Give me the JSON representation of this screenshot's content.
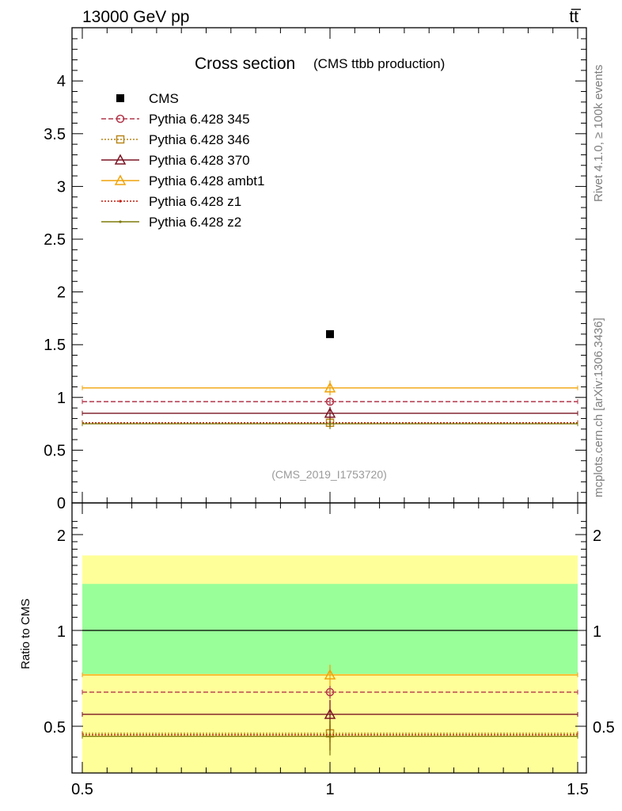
{
  "header": {
    "energy_label": "13000 GeV pp",
    "process_label": "tt̅"
  },
  "side_labels": {
    "rivet": "Rivet 4.1.0, ≥ 100k events",
    "mcplots": "mcplots.cern.ch [arXiv:1306.3436]"
  },
  "watermark": "(CMS_2019_I1753720)",
  "chart_data": [
    {
      "type": "line",
      "panel": "main",
      "title": "Cross section",
      "subtitle": "(CMS ttbb production)",
      "xlabel": "",
      "ylabel": "",
      "xlim": [
        0.5,
        1.5
      ],
      "ylim": [
        0,
        4.5
      ],
      "yticks": [
        0,
        0.5,
        1,
        1.5,
        2,
        2.5,
        3,
        3.5,
        4
      ],
      "yticklabels": [
        "0",
        "0.5",
        "1",
        "1.5",
        "2",
        "2.5",
        "3",
        "3.5",
        "4"
      ],
      "data": {
        "name": "CMS",
        "x": 1.0,
        "y": 1.6,
        "color": "#000000"
      },
      "series": [
        {
          "name": "Pythia 6.428 345",
          "y": 0.96,
          "err": 0.03,
          "color": "#b2384c",
          "dash": "6,3",
          "marker": "circle"
        },
        {
          "name": "Pythia 6.428 346",
          "y": 0.76,
          "err": 0.03,
          "color": "#b8861b",
          "dash": "2,2",
          "marker": "square"
        },
        {
          "name": "Pythia 6.428 370",
          "y": 0.85,
          "err": 0.06,
          "color": "#7a1523",
          "dash": "",
          "marker": "triangle"
        },
        {
          "name": "Pythia 6.428 ambt1",
          "y": 1.09,
          "err": 0.07,
          "color": "#f0a30a",
          "dash": "",
          "marker": "triangle"
        },
        {
          "name": "Pythia 6.428 z1",
          "y": 0.76,
          "err": 0.04,
          "color": "#c41a0a",
          "dash": "2,2",
          "marker": "dot"
        },
        {
          "name": "Pythia 6.428 z2",
          "y": 0.75,
          "err": 0.05,
          "color": "#7e7b0c",
          "dash": "",
          "marker": "dot"
        }
      ]
    },
    {
      "type": "line",
      "panel": "ratio",
      "ylabel": "Ratio to CMS",
      "xlim": [
        0.5,
        1.5
      ],
      "ylim": [
        0.34,
        2.33
      ],
      "xticklabels": [
        "0.5",
        "1",
        "1.5"
      ],
      "yticklabels": [
        "0.5",
        "1",
        "2"
      ],
      "bands": [
        {
          "name": "outer",
          "low": 0.35,
          "high": 1.72,
          "color": "#ffff99"
        },
        {
          "name": "inner",
          "low": 0.73,
          "high": 1.4,
          "color": "#99ff99"
        }
      ],
      "reference": 1.0,
      "series": [
        {
          "name": "Pythia 6.428 345",
          "y": 0.64,
          "err": 0.03
        },
        {
          "name": "Pythia 6.428 346",
          "y": 0.475,
          "err": 0.03
        },
        {
          "name": "Pythia 6.428 370",
          "y": 0.545,
          "err": 0.06
        },
        {
          "name": "Pythia 6.428 ambt1",
          "y": 0.725,
          "err": 0.055
        },
        {
          "name": "Pythia 6.428 z1",
          "y": 0.47,
          "err": 0.05
        },
        {
          "name": "Pythia 6.428 z2",
          "y": 0.465,
          "err": 0.06
        }
      ]
    }
  ]
}
